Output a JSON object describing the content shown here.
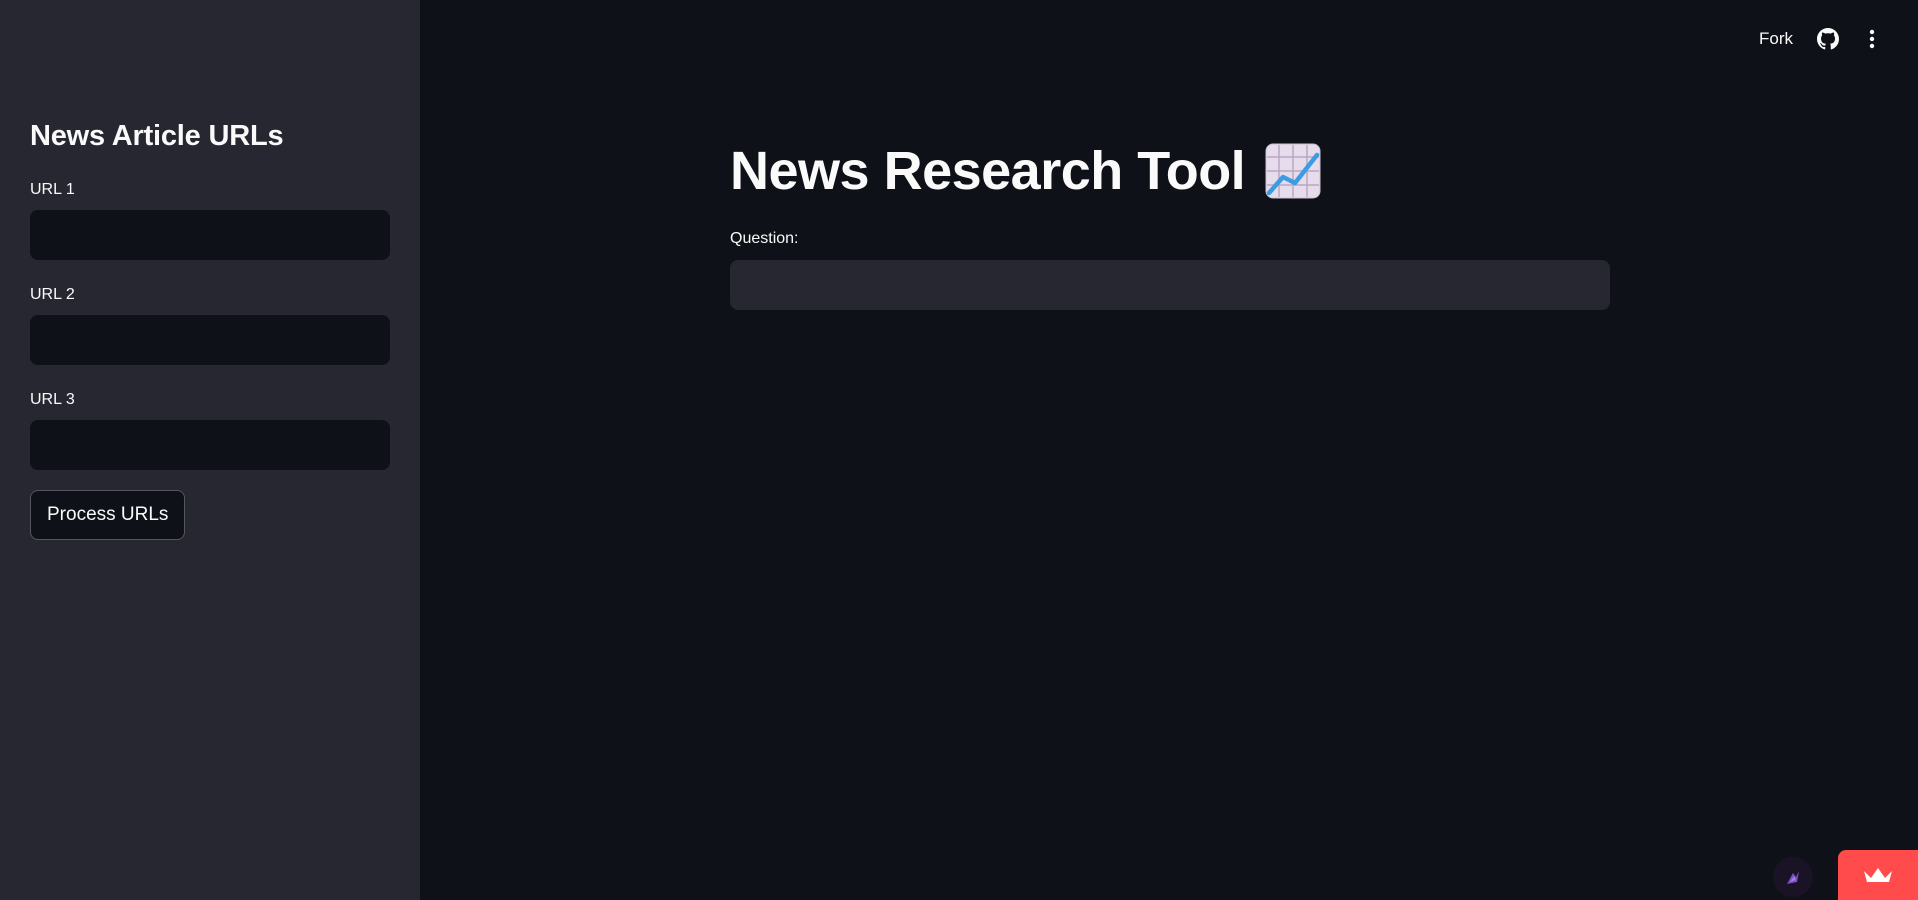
{
  "sidebar": {
    "title": "News Article URLs",
    "fields": [
      {
        "label": "URL 1",
        "value": ""
      },
      {
        "label": "URL 2",
        "value": ""
      },
      {
        "label": "URL 3",
        "value": ""
      }
    ],
    "process_button_label": "Process URLs"
  },
  "header": {
    "fork_label": "Fork",
    "github_icon": "github-icon",
    "menu_icon": "vertical-ellipsis-icon"
  },
  "main": {
    "title": "News Research Tool",
    "title_emoji": "chart-increasing-icon",
    "question_label": "Question:",
    "question_value": ""
  },
  "colors": {
    "app_background": "#0e1117",
    "sidebar_background": "#262730",
    "text": "#fafafa",
    "accent": "#ff4b4b"
  }
}
